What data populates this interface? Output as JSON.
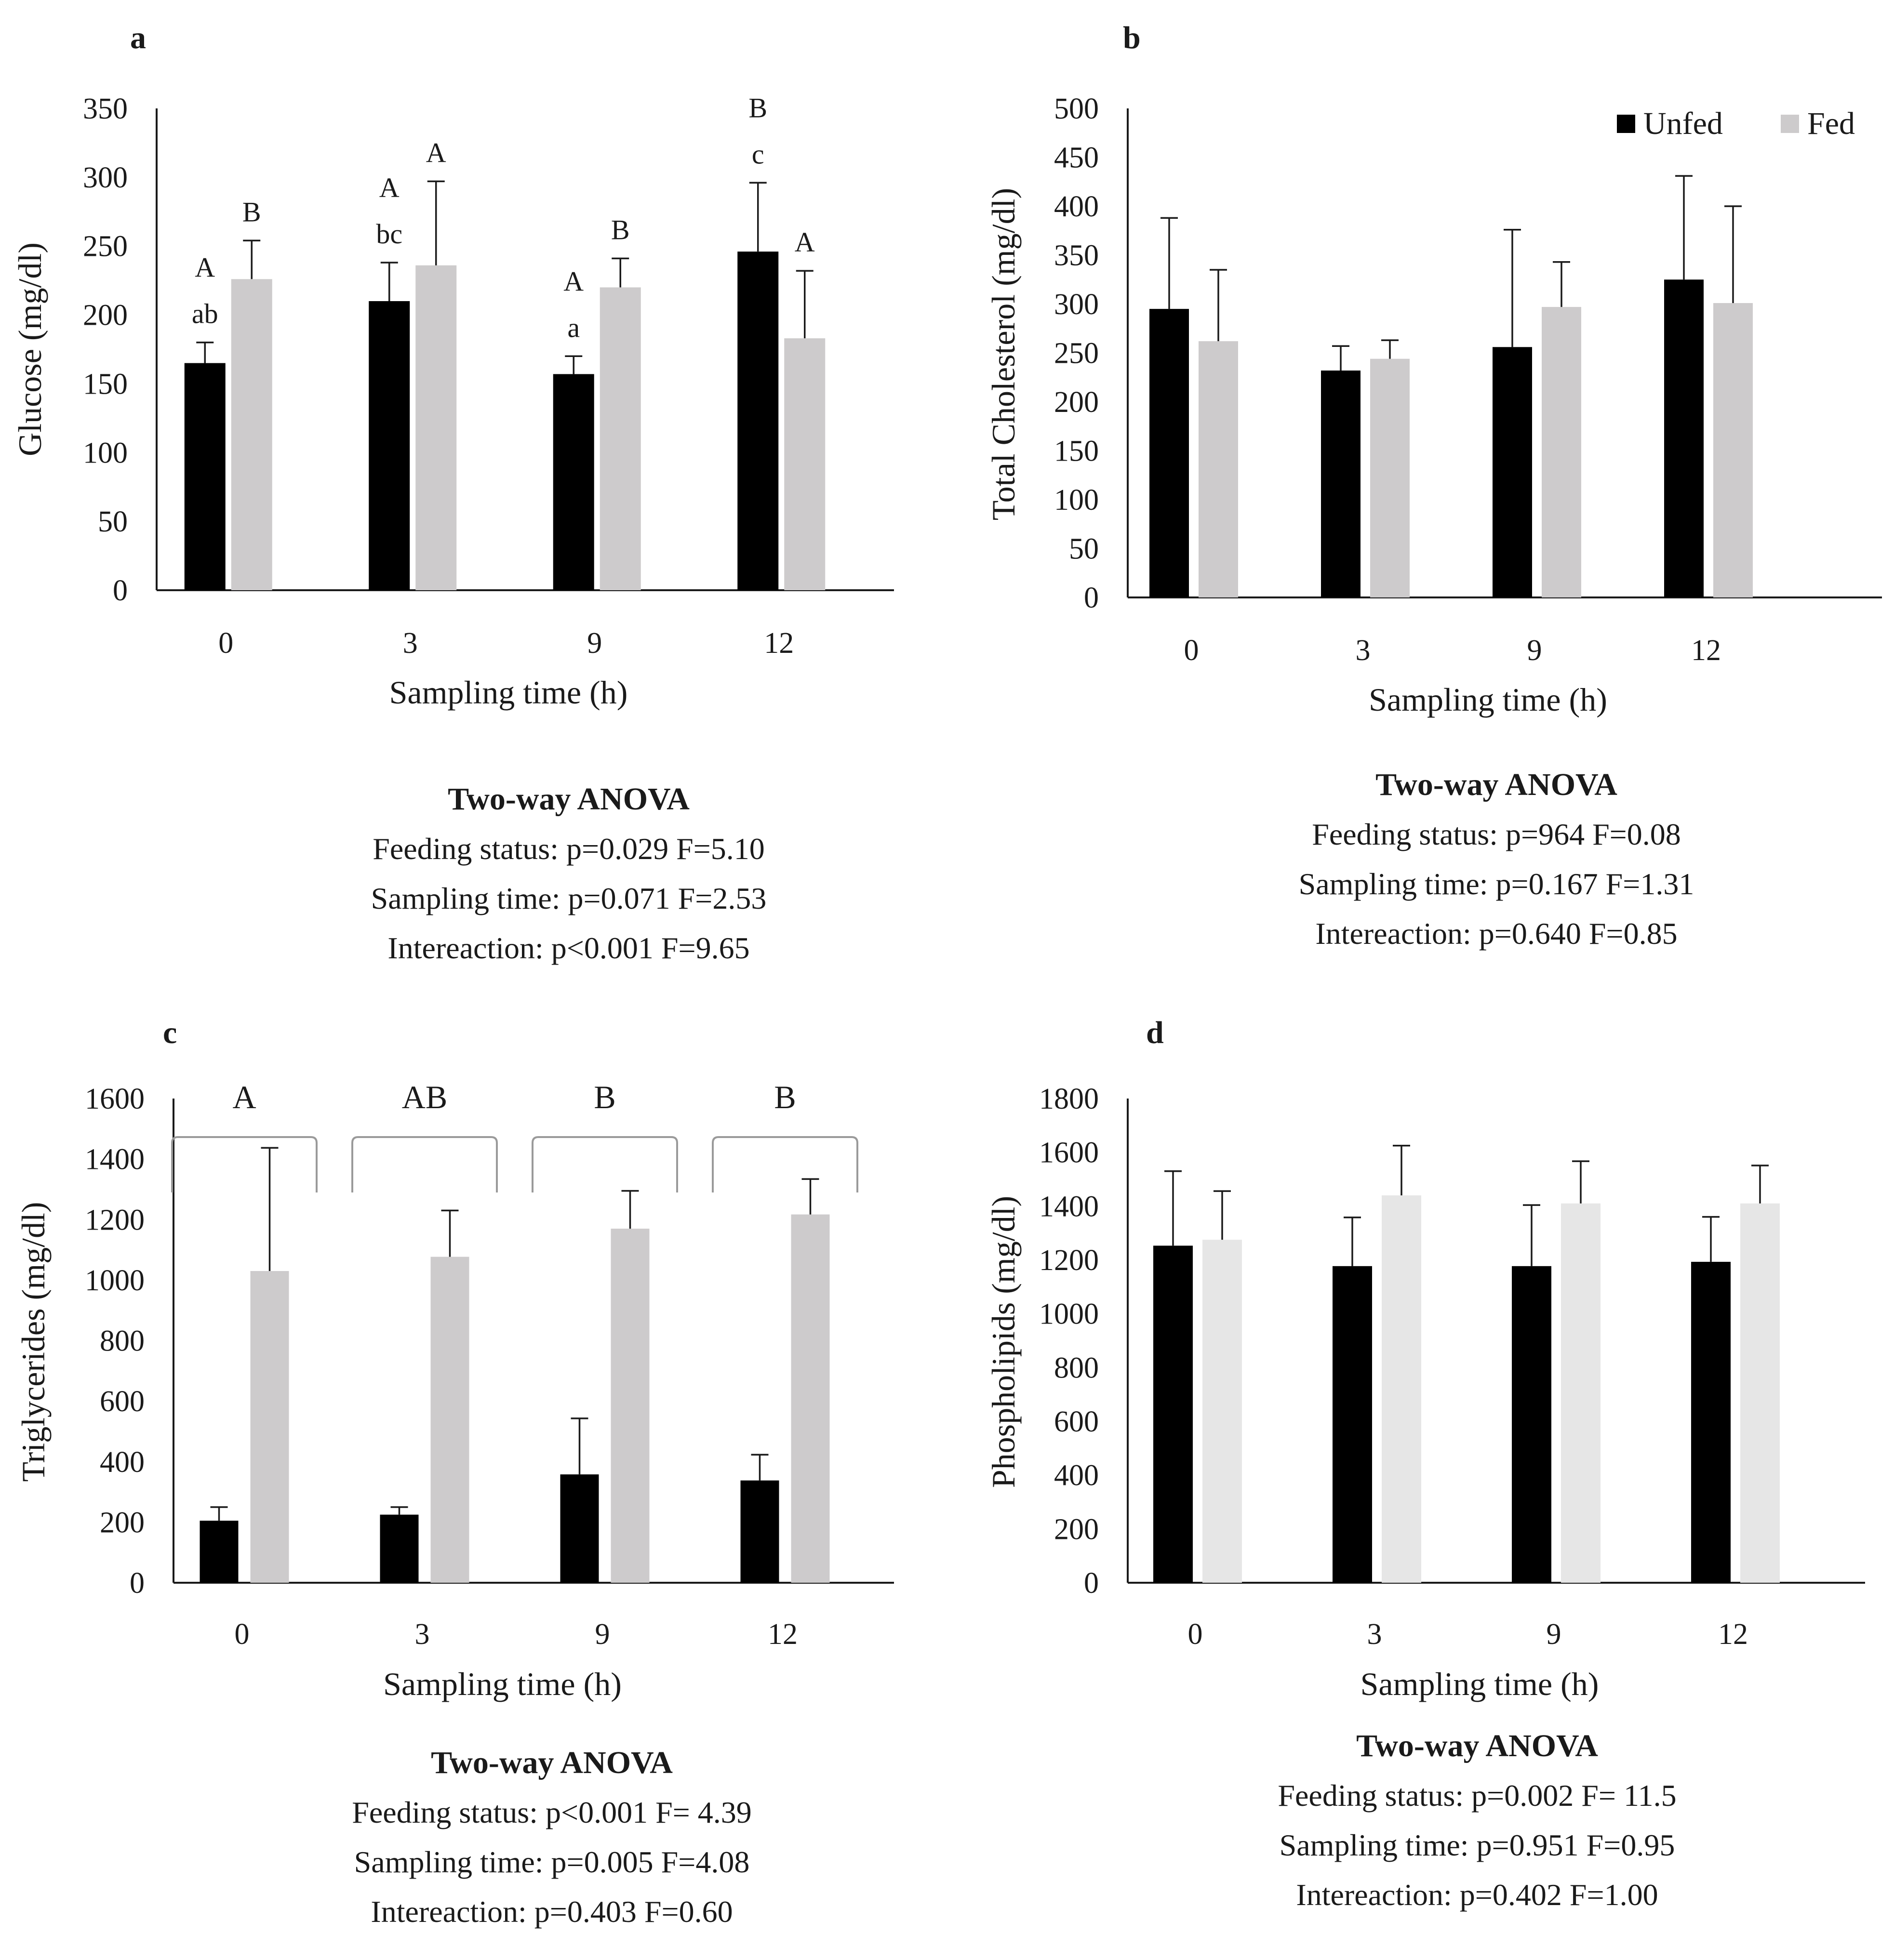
{
  "colors": {
    "unfed": "#000000",
    "fed": "#cdcbcc",
    "fed_d": "#e6e6e6"
  },
  "legend": {
    "unfed": "Unfed",
    "fed": "Fed"
  },
  "chart_data": [
    {
      "id": "a",
      "type": "bar",
      "panel_label": "a",
      "categories": [
        "0",
        "3",
        "9",
        "12"
      ],
      "xlabel": "Sampling time (h)",
      "ylabel": "Glucose (mg/dl)",
      "ylim": [
        0,
        350
      ],
      "yticks": [
        "0",
        "50",
        "100",
        "150",
        "200",
        "250",
        "300",
        "350"
      ],
      "series": [
        {
          "name": "Unfed",
          "values": [
            165,
            210,
            157,
            246
          ],
          "errors": [
            15,
            28,
            13,
            50
          ],
          "letters": [
            [
              "A",
              "ab"
            ],
            [
              "A",
              "bc"
            ],
            [
              "A",
              "a"
            ],
            [
              "B",
              "c"
            ]
          ]
        },
        {
          "name": "Fed",
          "values": [
            226,
            236,
            220,
            183
          ],
          "errors": [
            28,
            61,
            21,
            49
          ],
          "letters": [
            [
              "B"
            ],
            [
              "A"
            ],
            [
              "B"
            ],
            [
              "A"
            ]
          ]
        }
      ],
      "anova": {
        "title": "Two-way ANOVA",
        "lines": [
          "Feeding status: p=0.029 F=5.10",
          "Sampling time: p=0.071 F=2.53",
          "Intereaction: p<0.001 F=9.65"
        ]
      }
    },
    {
      "id": "b",
      "type": "bar",
      "panel_label": "b",
      "categories": [
        "0",
        "3",
        "9",
        "12"
      ],
      "xlabel": "Sampling time (h)",
      "ylabel": "Total Cholesterol (mg/dl)",
      "ylim": [
        0,
        500
      ],
      "yticks": [
        "0",
        "50",
        "100",
        "150",
        "200",
        "250",
        "300",
        "350",
        "400",
        "450",
        "500"
      ],
      "legend": true,
      "series": [
        {
          "name": "Unfed",
          "values": [
            295,
            232,
            256,
            325
          ],
          "errors": [
            93,
            25,
            120,
            106
          ]
        },
        {
          "name": "Fed",
          "values": [
            262,
            244,
            297,
            301
          ],
          "errors": [
            73,
            19,
            46,
            99
          ]
        }
      ],
      "anova": {
        "title": "Two-way ANOVA",
        "lines": [
          "Feeding status: p=964 F=0.08",
          "Sampling time: p=0.167 F=1.31",
          "Intereaction: p=0.640 F=0.85"
        ]
      }
    },
    {
      "id": "c",
      "type": "bar",
      "panel_label": "c",
      "categories": [
        "0",
        "3",
        "9",
        "12"
      ],
      "xlabel": "Sampling time (h)",
      "ylabel": "Triglycerides (mg/dl)",
      "ylim": [
        0,
        1600
      ],
      "yticks": [
        "0",
        "200",
        "400",
        "600",
        "800",
        "1000",
        "1200",
        "1400",
        "1600"
      ],
      "brackets": [
        "A",
        "AB",
        "B",
        "B"
      ],
      "series": [
        {
          "name": "Unfed",
          "values": [
            205,
            225,
            358,
            338
          ],
          "errors": [
            45,
            25,
            185,
            85
          ]
        },
        {
          "name": "Fed",
          "values": [
            1030,
            1077,
            1170,
            1217
          ],
          "errors": [
            407,
            153,
            125,
            117
          ]
        }
      ],
      "anova": {
        "title": "Two-way ANOVA",
        "lines": [
          "Feeding status: p<0.001     F= 4.39",
          "Sampling time: p=0.005 F=4.08",
          "Intereaction: p=0.403 F=0.60"
        ]
      }
    },
    {
      "id": "d",
      "type": "bar",
      "panel_label": "d",
      "categories": [
        "0",
        "3",
        "9",
        "12"
      ],
      "xlabel": "Sampling time (h)",
      "ylabel": "Phospholipids (mg/dl)",
      "ylim": [
        0,
        1800
      ],
      "yticks": [
        "0",
        "200",
        "400",
        "600",
        "800",
        "1000",
        "1200",
        "1400",
        "1600",
        "1800"
      ],
      "series": [
        {
          "name": "Unfed",
          "values": [
            1253,
            1177,
            1177,
            1193
          ],
          "errors": [
            277,
            181,
            227,
            167
          ]
        },
        {
          "name": "Fed",
          "values": [
            1275,
            1440,
            1410,
            1410
          ],
          "errors": [
            181,
            185,
            157,
            141
          ]
        }
      ],
      "anova": {
        "title": "Two-way ANOVA",
        "lines": [
          "Feeding status: p=0.002     F= 11.5",
          "Sampling time: p=0.951 F=0.95",
          "Intereaction: p=0.402 F=1.00"
        ]
      }
    }
  ]
}
